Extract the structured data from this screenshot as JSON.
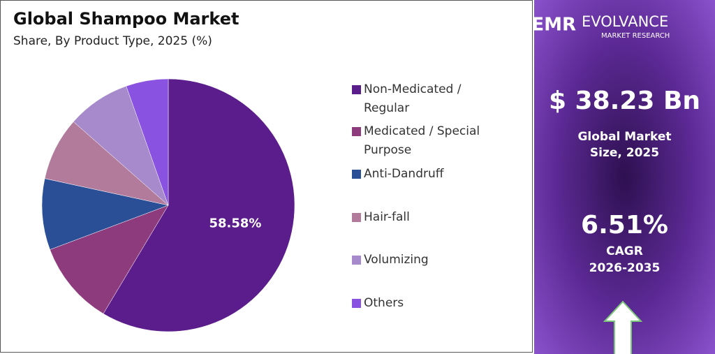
{
  "chart_data": {
    "type": "pie",
    "title": "Global Shampoo Market",
    "subtitle": "Share, By Product Type, 2025 (%)",
    "categories": [
      "Non-Medicated / Regular",
      "Medicated / Special Purpose",
      "Anti-Dandruff",
      "Hair-fall",
      "Volumizing",
      "Others"
    ],
    "values": [
      58.58,
      10.7,
      9.1,
      8.1,
      8.1,
      5.4
    ],
    "value_labels": [
      "58.58%",
      null,
      null,
      null,
      null,
      null
    ],
    "colors": [
      "#5c1d8c",
      "#8d3b7c",
      "#2b4f97",
      "#b27a9b",
      "#a68acb",
      "#8a52e0"
    ]
  },
  "brand": {
    "mark": "EMR",
    "name": "EVOLVANCE",
    "tagline": "MARKET RESEARCH"
  },
  "panel": {
    "market_size": "$ 38.23 Bn",
    "market_size_label": "Global Market Size, 2025",
    "cagr": "6.51%",
    "cagr_label": "CAGR",
    "cagr_period": "2026-2035"
  }
}
